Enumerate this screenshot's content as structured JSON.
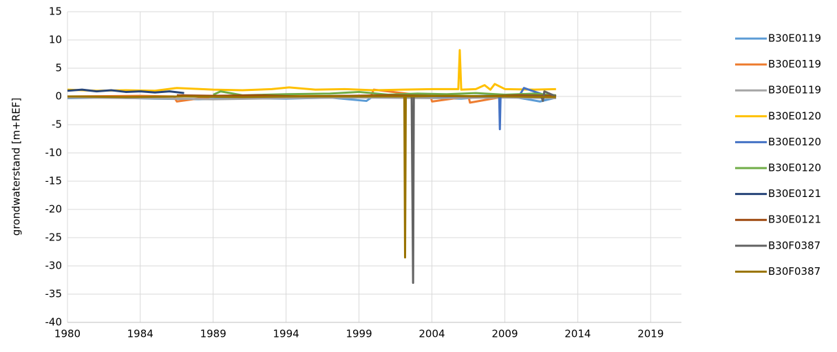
{
  "chart_data": {
    "type": "line",
    "y_label": "grondwaterstand [m+REF]",
    "xlim": [
      1980,
      2022.1
    ],
    "ylim": [
      -40,
      15
    ],
    "xticks": [
      1980,
      {
        "value": 1984.99,
        "label": "1984"
      },
      {
        "value": 1989.99,
        "label": "1989"
      },
      {
        "value": 1994.99,
        "label": "1994"
      },
      {
        "value": 1999.99,
        "label": "1999"
      },
      {
        "value": 2004.99,
        "label": "2004"
      },
      {
        "value": 2009.99,
        "label": "2009"
      },
      {
        "value": 2014.99,
        "label": "2014"
      },
      {
        "value": 2019.99,
        "label": "2019"
      }
    ],
    "yticks": [
      15,
      10,
      5,
      0,
      -5,
      -10,
      -15,
      -20,
      -25,
      -30,
      -35,
      -40
    ],
    "grid": true,
    "legend": "right",
    "series": [
      {
        "name": "B30E0119",
        "color": "#5b9bd5",
        "x": [
          1980,
          1983,
          1986,
          1989,
          1992,
          1995,
          1998,
          2000.5,
          2001,
          2004,
          2007,
          2010,
          2012.4,
          2013.5
        ],
        "values": [
          -0.3,
          -0.2,
          -0.4,
          -0.5,
          -0.3,
          -0.4,
          -0.2,
          -0.8,
          0.1,
          -0.2,
          -0.4,
          0.2,
          -0.9,
          -0.2
        ]
      },
      {
        "name": "B30E0119",
        "color": "#ed7d31",
        "x": [
          1980,
          1985,
          1987.3,
          1987.5,
          1990,
          1995,
          2000.8,
          2001,
          2004.9,
          2005,
          2007.5,
          2007.6,
          2010,
          2013.5
        ],
        "values": [
          0,
          0.1,
          0,
          -0.9,
          0,
          0.1,
          0,
          1.2,
          0,
          -0.9,
          0,
          -1.1,
          0,
          0.1
        ]
      },
      {
        "name": "B30E0119",
        "color": "#a5a5a5",
        "x": [
          1980,
          1985,
          1990,
          1995,
          2000,
          2005,
          2010,
          2013.5
        ],
        "values": [
          -0.2,
          -0.3,
          -0.5,
          -0.3,
          -0.2,
          -0.3,
          -0.2,
          -0.3
        ]
      },
      {
        "name": "B30E0120",
        "color": "#ffc000",
        "x": [
          1980,
          1982,
          1984,
          1986,
          1987.5,
          1990,
          1992,
          1994,
          1995.2,
          1997,
          1999,
          2001,
          2003,
          2005,
          2006.8,
          2006.9,
          2007,
          2008,
          2008.6,
          2009,
          2009.3,
          2010,
          2012,
          2013.5
        ],
        "values": [
          1.2,
          1.0,
          1.1,
          1.0,
          1.5,
          1.2,
          1.1,
          1.3,
          1.6,
          1.2,
          1.3,
          1.1,
          1.2,
          1.3,
          1.3,
          8.2,
          1.2,
          1.3,
          2.0,
          1.2,
          2.2,
          1.3,
          1.2,
          1.3
        ]
      },
      {
        "name": "B30E0120",
        "color": "#4472c4",
        "x": [
          2000,
          2003,
          2006,
          2009,
          2009.6,
          2009.65,
          2009.7,
          2011,
          2011.3,
          2013
        ],
        "values": [
          0,
          0.1,
          0,
          0.1,
          0.1,
          -5.8,
          0.1,
          0.2,
          1.5,
          0
        ]
      },
      {
        "name": "B30E0120",
        "color": "#70ad47",
        "x": [
          1990,
          1990.5,
          1992,
          1995,
          1998,
          2000,
          2002,
          2004,
          2006,
          2008,
          2010,
          2012,
          2013.5
        ],
        "values": [
          0.3,
          0.9,
          0.2,
          0.4,
          0.5,
          0.8,
          0.3,
          0.5,
          0.4,
          0.6,
          0.3,
          0.5,
          0.2
        ]
      },
      {
        "name": "B30E0121",
        "color": "#264478",
        "x": [
          1980,
          1981,
          1982,
          1983,
          1984,
          1985,
          1986,
          1987,
          1988
        ],
        "values": [
          1.0,
          1.2,
          0.9,
          1.1,
          0.8,
          0.9,
          0.7,
          0.9,
          0.6
        ]
      },
      {
        "name": "B30E0121",
        "color": "#9e480e",
        "x": [
          1987.5,
          1990,
          1993,
          1996,
          1999,
          2002,
          2005,
          2008,
          2011,
          2013.5
        ],
        "values": [
          0.2,
          0.1,
          0.2,
          0,
          0.1,
          0.2,
          0.1,
          0,
          0.2,
          0.1
        ]
      },
      {
        "name": "B30F0387",
        "color": "#636363",
        "x": [
          2000,
          2003.6,
          2003.7,
          2003.75,
          2006,
          2009,
          2012.5,
          2012.6,
          2012.7,
          2013.5
        ],
        "values": [
          0,
          0,
          -33,
          0,
          0.1,
          0,
          0,
          -0.8,
          0.9,
          0
        ]
      },
      {
        "name": "B30F0387",
        "color": "#997300",
        "x": [
          1980,
          1984,
          1988,
          1992,
          1996,
          2000,
          2003.1,
          2003.15,
          2003.2,
          2006,
          2010,
          2013.5
        ],
        "values": [
          0,
          -0.1,
          0,
          -0.1,
          0,
          0,
          0,
          -28.5,
          0,
          0.1,
          0,
          -0.1
        ]
      }
    ]
  }
}
